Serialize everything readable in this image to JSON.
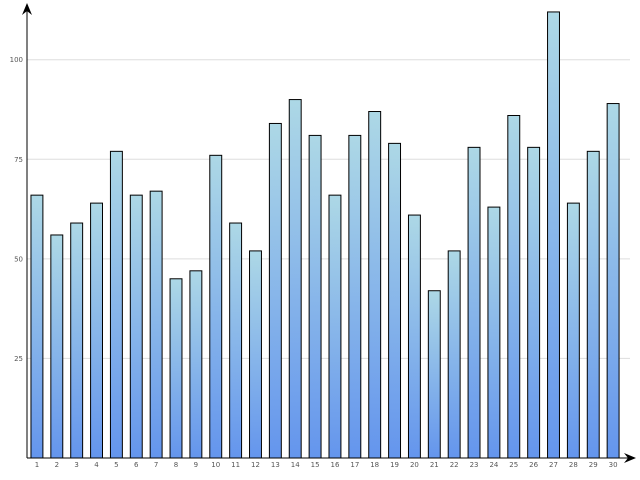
{
  "chart_data": {
    "type": "bar",
    "categories": [
      "1",
      "2",
      "3",
      "4",
      "5",
      "6",
      "7",
      "8",
      "9",
      "10",
      "11",
      "12",
      "13",
      "14",
      "15",
      "16",
      "17",
      "18",
      "19",
      "20",
      "21",
      "22",
      "23",
      "24",
      "25",
      "26",
      "27",
      "28",
      "29",
      "30"
    ],
    "values": [
      66,
      56,
      59,
      64,
      77,
      66,
      67,
      45,
      47,
      76,
      59,
      52,
      84,
      90,
      81,
      66,
      81,
      87,
      79,
      61,
      42,
      52,
      78,
      63,
      86,
      78,
      112,
      64,
      77,
      89
    ],
    "title": "",
    "xlabel": "",
    "ylabel": "",
    "ylim": [
      0,
      115
    ],
    "yticks": [
      25,
      50,
      75,
      100
    ],
    "grid": true,
    "legend": "none",
    "colors": {
      "bar_top": "#add8e6",
      "bar_bottom": "#6495ed",
      "bar_stroke": "#000000",
      "grid": "#dddddd",
      "axis": "#000000"
    }
  }
}
